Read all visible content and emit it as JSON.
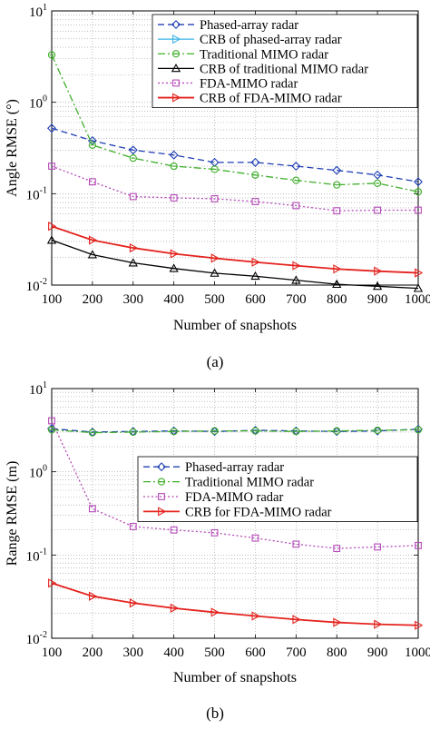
{
  "chart_data": [
    {
      "type": "line",
      "panel_label": "(a)",
      "xlabel": "Number of snapshots",
      "ylabel": "Angle RMSE (°)",
      "yscale": "log",
      "grid": true,
      "legend_position": "top-right",
      "x": [
        100,
        200,
        300,
        400,
        500,
        600,
        700,
        800,
        900,
        1000
      ],
      "x_ticks": [
        "100",
        "200",
        "300",
        "400",
        "500",
        "600",
        "700",
        "800",
        "900",
        "1000"
      ],
      "xlim": [
        100,
        1000
      ],
      "ylim": [
        0.01,
        10
      ],
      "y_ticks": [
        {
          "value": 10,
          "base": "10",
          "exp": "1"
        },
        {
          "value": 1,
          "base": "10",
          "exp": "0"
        },
        {
          "value": 0.1,
          "base": "10",
          "exp": "-1"
        },
        {
          "value": 0.01,
          "base": "10",
          "exp": "-2"
        }
      ],
      "series": [
        {
          "name": "Phased-array radar",
          "color": "#1f3fb4",
          "dash": "dashed",
          "marker": "diamond",
          "values": [
            0.52,
            0.38,
            0.3,
            0.265,
            0.22,
            0.22,
            0.2,
            0.18,
            0.16,
            0.135
          ]
        },
        {
          "name": "CRB of phased-array radar",
          "color": "#3cb4e6",
          "dash": "solid",
          "marker": "triangle-right",
          "values": [
            null,
            null,
            null,
            null,
            null,
            null,
            null,
            null,
            null,
            null
          ]
        },
        {
          "name": "Traditional MIMO radar",
          "color": "#3fae2a",
          "dash": "dashdot",
          "marker": "circle",
          "values": [
            3.3,
            0.34,
            0.245,
            0.2,
            0.185,
            0.16,
            0.14,
            0.125,
            0.13,
            0.105
          ]
        },
        {
          "name": "CRB of traditional MIMO radar",
          "color": "#000000",
          "dash": "solid",
          "marker": "triangle-up",
          "values": [
            0.031,
            0.0215,
            0.0175,
            0.0152,
            0.0135,
            0.0125,
            0.0113,
            0.0102,
            0.0097,
            0.0092
          ]
        },
        {
          "name": "FDA-MIMO radar",
          "color": "#b54ab9",
          "dash": "dotted",
          "marker": "square",
          "values": [
            0.2,
            0.135,
            0.093,
            0.09,
            0.088,
            0.082,
            0.074,
            0.065,
            0.066,
            0.066
          ]
        },
        {
          "name": "CRB of FDA-MIMO radar",
          "color": "#e4231e",
          "dash": "solid",
          "marker": "triangle-right",
          "values": [
            0.044,
            0.031,
            0.0255,
            0.022,
            0.0197,
            0.0178,
            0.0163,
            0.015,
            0.0142,
            0.0136
          ]
        }
      ]
    },
    {
      "type": "line",
      "panel_label": "(b)",
      "xlabel": "Number of snapshots",
      "ylabel": "Range RMSE (m)",
      "yscale": "log",
      "grid": true,
      "legend_position": "center-right",
      "x": [
        100,
        200,
        300,
        400,
        500,
        600,
        700,
        800,
        900,
        1000
      ],
      "x_ticks": [
        "100",
        "200",
        "300",
        "400",
        "500",
        "600",
        "700",
        "800",
        "900",
        "1000"
      ],
      "xlim": [
        100,
        1000
      ],
      "ylim": [
        0.01,
        10
      ],
      "y_ticks": [
        {
          "value": 10,
          "base": "10",
          "exp": "1"
        },
        {
          "value": 1,
          "base": "10",
          "exp": "0"
        },
        {
          "value": 0.1,
          "base": "10",
          "exp": "-1"
        },
        {
          "value": 0.01,
          "base": "10",
          "exp": "-2"
        }
      ],
      "series": [
        {
          "name": "Phased-array radar",
          "color": "#1f3fb4",
          "dash": "dashed",
          "marker": "diamond",
          "values": [
            3.3,
            3.0,
            3.05,
            3.1,
            3.05,
            3.15,
            3.1,
            3.05,
            3.1,
            3.25
          ]
        },
        {
          "name": "Traditional MIMO radar",
          "color": "#3fae2a",
          "dash": "dashdot",
          "marker": "circle",
          "values": [
            3.2,
            2.95,
            3.0,
            3.05,
            3.1,
            3.1,
            3.05,
            3.1,
            3.15,
            3.2
          ]
        },
        {
          "name": "FDA-MIMO radar",
          "color": "#b54ab9",
          "dash": "dotted",
          "marker": "square",
          "values": [
            4.1,
            0.36,
            0.22,
            0.2,
            0.185,
            0.16,
            0.135,
            0.12,
            0.125,
            0.13
          ]
        },
        {
          "name": "CRB for FDA-MIMO radar",
          "color": "#e4231e",
          "dash": "solid",
          "marker": "triangle-right",
          "values": [
            0.046,
            0.032,
            0.0265,
            0.023,
            0.0205,
            0.0185,
            0.0168,
            0.0155,
            0.0147,
            0.0143
          ]
        }
      ]
    }
  ]
}
